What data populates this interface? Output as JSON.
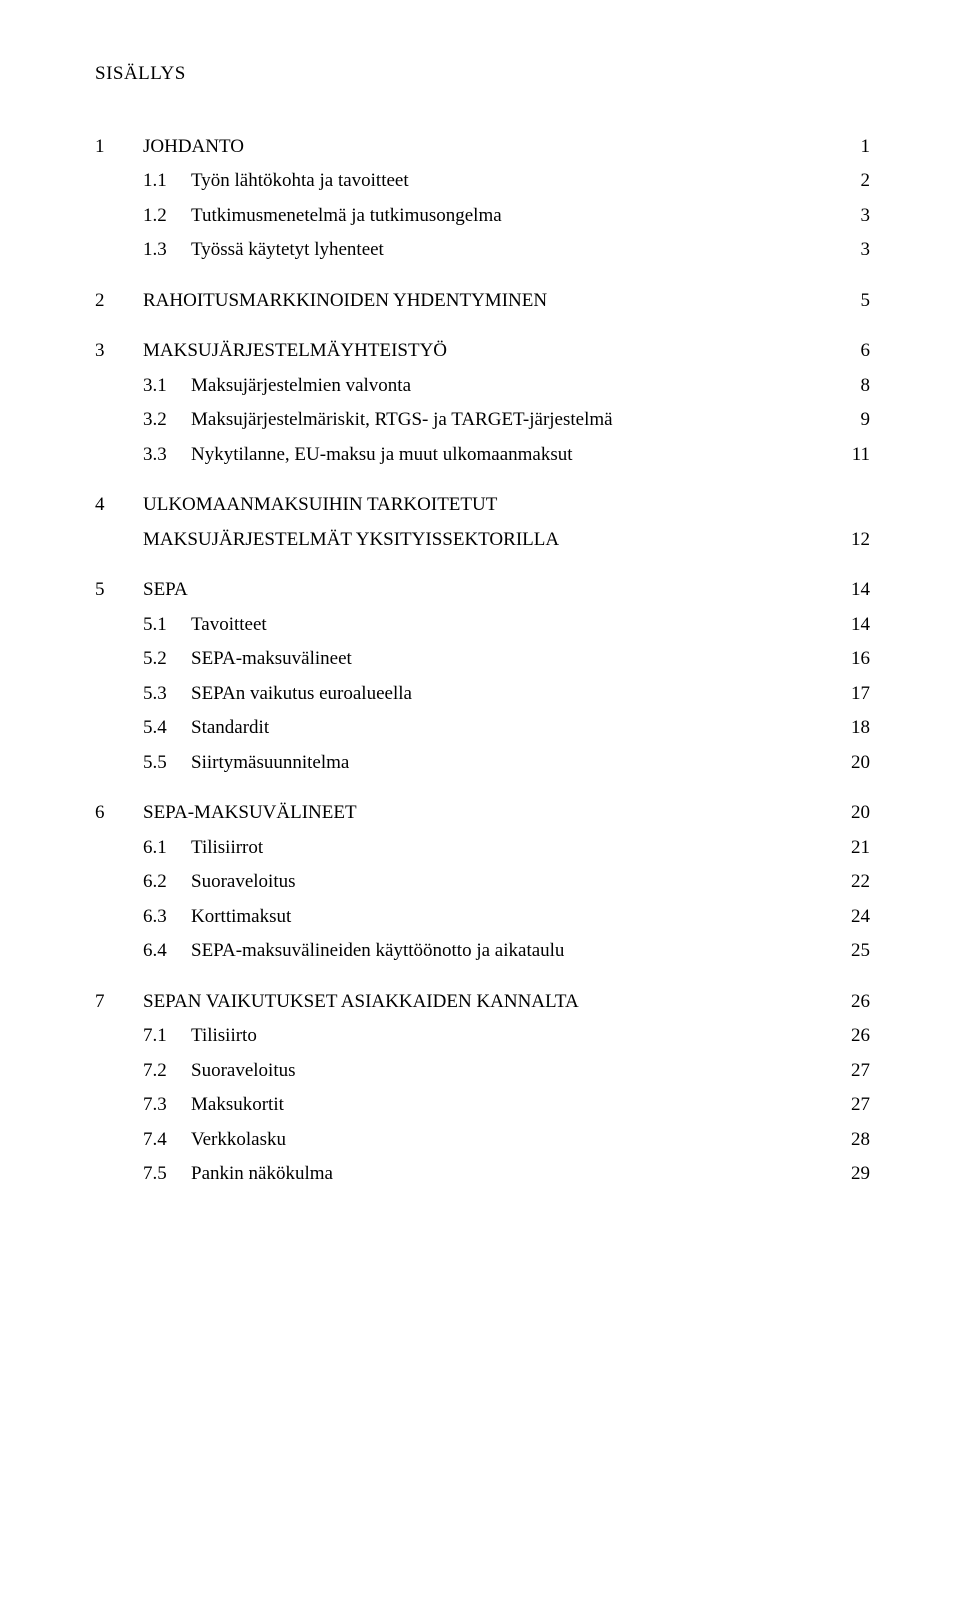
{
  "title": "SISÄLLYS",
  "colors": {
    "background": "#ffffff",
    "text": "#000000"
  },
  "typography": {
    "font_family": "Times New Roman",
    "base_font_size_pt": 14,
    "line_height": 1.5
  },
  "toc": [
    {
      "num": "1",
      "label": "JOHDANTO",
      "page": "1",
      "children": [
        {
          "num": "1.1",
          "label": "Työn lähtökohta ja tavoitteet",
          "page": "2"
        },
        {
          "num": "1.2",
          "label": "Tutkimusmenetelmä ja tutkimusongelma",
          "page": "3"
        },
        {
          "num": "1.3",
          "label": "Työssä käytetyt lyhenteet",
          "page": "3"
        }
      ]
    },
    {
      "num": "2",
      "label": "RAHOITUSMARKKINOIDEN YHDENTYMINEN",
      "page": "5",
      "children": []
    },
    {
      "num": "3",
      "label": "MAKSUJÄRJESTELMÄYHTEISTYÖ",
      "page": "6",
      "children": [
        {
          "num": "3.1",
          "label": "Maksujärjestelmien valvonta",
          "page": "8"
        },
        {
          "num": "3.2",
          "label": "Maksujärjestelmäriskit, RTGS- ja TARGET-järjestelmä",
          "page": "9"
        },
        {
          "num": "3.3",
          "label": "Nykytilanne, EU-maksu ja muut ulkomaanmaksut",
          "page": "11"
        }
      ]
    },
    {
      "num": "4",
      "label_line1": "ULKOMAANMAKSUIHIN TARKOITETUT",
      "label_line2": "MAKSUJÄRJESTELMÄT YKSITYISSEKTORILLA",
      "page": "12",
      "children": []
    },
    {
      "num": "5",
      "label": "SEPA",
      "page": "14",
      "children": [
        {
          "num": "5.1",
          "label": "Tavoitteet",
          "page": "14"
        },
        {
          "num": "5.2",
          "label": "SEPA-maksuvälineet",
          "page": "16"
        },
        {
          "num": "5.3",
          "label": "SEPAn vaikutus euroalueella",
          "page": "17"
        },
        {
          "num": "5.4",
          "label": "Standardit",
          "page": "18"
        },
        {
          "num": "5.5",
          "label": "Siirtymäsuunnitelma",
          "page": "20"
        }
      ]
    },
    {
      "num": "6",
      "label": "SEPA-MAKSUVÄLINEET",
      "page": "20",
      "children": [
        {
          "num": "6.1",
          "label": "Tilisiirrot",
          "page": "21"
        },
        {
          "num": "6.2",
          "label": "Suoraveloitus",
          "page": "22"
        },
        {
          "num": "6.3",
          "label": "Korttimaksut",
          "page": "24"
        },
        {
          "num": "6.4",
          "label": "SEPA-maksuvälineiden käyttöönotto ja aikataulu",
          "page": "25"
        }
      ]
    },
    {
      "num": "7",
      "label": "SEPAN VAIKUTUKSET ASIAKKAIDEN KANNALTA",
      "page": "26",
      "children": [
        {
          "num": "7.1",
          "label": "Tilisiirto",
          "page": "26"
        },
        {
          "num": "7.2",
          "label": "Suoraveloitus",
          "page": "27"
        },
        {
          "num": "7.3",
          "label": "Maksukortit",
          "page": "27"
        },
        {
          "num": "7.4",
          "label": "Verkkolasku",
          "page": "28"
        },
        {
          "num": "7.5",
          "label": "Pankin näkökulma",
          "page": "29"
        }
      ]
    }
  ]
}
